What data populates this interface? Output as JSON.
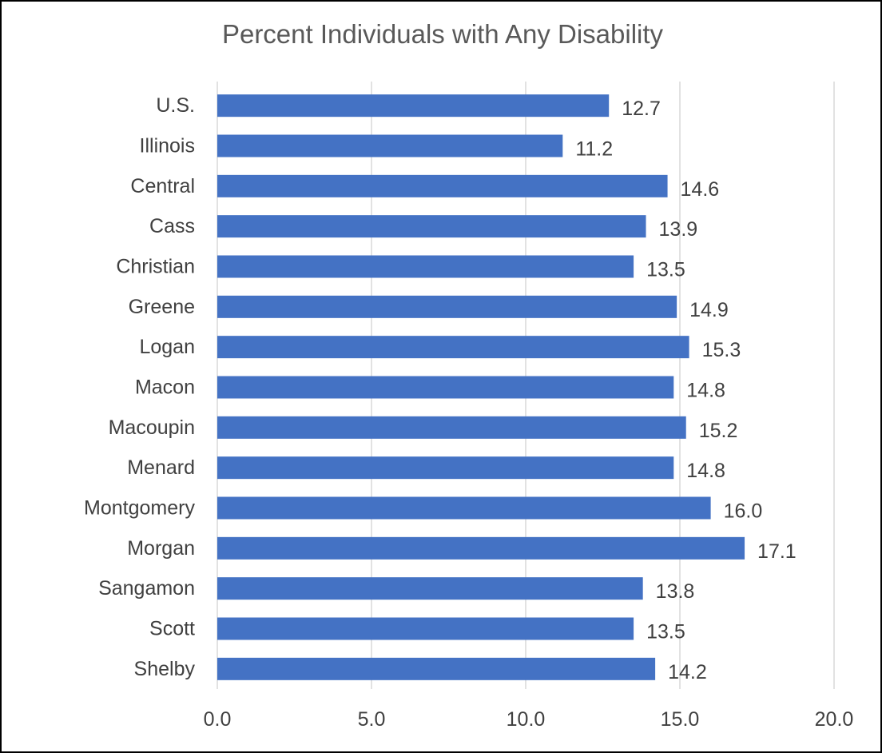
{
  "chart_data": {
    "type": "bar",
    "orientation": "horizontal",
    "title": "Percent Individuals with Any Disability",
    "categories": [
      "U.S.",
      "Illinois",
      "Central",
      "Cass",
      "Christian",
      "Greene",
      "Logan",
      "Macon",
      "Macoupin",
      "Menard",
      "Montgomery",
      "Morgan",
      "Sangamon",
      "Scott",
      "Shelby"
    ],
    "values": [
      12.7,
      11.2,
      14.6,
      13.9,
      13.5,
      14.9,
      15.3,
      14.8,
      15.2,
      14.8,
      16.0,
      17.1,
      13.8,
      13.5,
      14.2
    ],
    "data_labels": [
      "12.7",
      "11.2",
      "14.6",
      "13.9",
      "13.5",
      "14.9",
      "15.3",
      "14.8",
      "15.2",
      "14.8",
      "16.0",
      "17.1",
      "13.8",
      "13.5",
      "14.2"
    ],
    "xlim": [
      0,
      20
    ],
    "x_ticks": [
      "0.0",
      "5.0",
      "10.0",
      "15.0",
      "20.0"
    ],
    "xlabel": "",
    "ylabel": "",
    "grid": "vertical",
    "legend": "none",
    "bar_color": "#4472C4",
    "grid_color": "#D9D9D9",
    "text_color": "#404040"
  }
}
